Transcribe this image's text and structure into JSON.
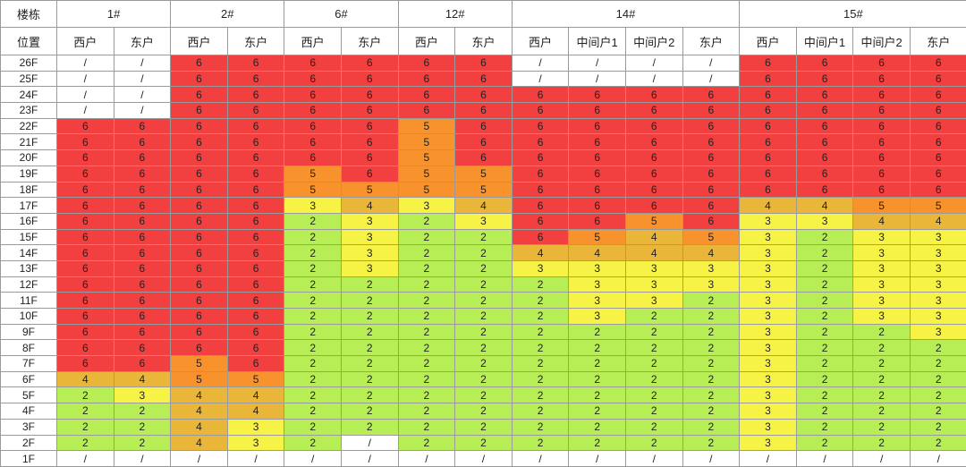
{
  "header": {
    "building_label": "楼栋",
    "position_label": "位置",
    "buildings": [
      {
        "name": "1#",
        "units": [
          "西户",
          "东户"
        ]
      },
      {
        "name": "2#",
        "units": [
          "西户",
          "东户"
        ]
      },
      {
        "name": "6#",
        "units": [
          "西户",
          "东户"
        ]
      },
      {
        "name": "12#",
        "units": [
          "西户",
          "东户"
        ]
      },
      {
        "name": "14#",
        "units": [
          "西户",
          "中间户1",
          "中间户2",
          "东户"
        ]
      },
      {
        "name": "15#",
        "units": [
          "西户",
          "中间户1",
          "中间户2",
          "东户"
        ]
      }
    ]
  },
  "colors": {
    "6": "#f23f3f",
    "5": "#f7922c",
    "4": "#e9b63a",
    "3": "#f7f346",
    "2": "#b8ee55",
    "/": "#ffffff"
  },
  "rows": [
    {
      "floor": "26F",
      "values": [
        "/",
        "/",
        "6",
        "6",
        "6",
        "6",
        "6",
        "6",
        "/",
        "/",
        "/",
        "/",
        "6",
        "6",
        "6",
        "6"
      ]
    },
    {
      "floor": "25F",
      "values": [
        "/",
        "/",
        "6",
        "6",
        "6",
        "6",
        "6",
        "6",
        "/",
        "/",
        "/",
        "/",
        "6",
        "6",
        "6",
        "6"
      ]
    },
    {
      "floor": "24F",
      "values": [
        "/",
        "/",
        "6",
        "6",
        "6",
        "6",
        "6",
        "6",
        "6",
        "6",
        "6",
        "6",
        "6",
        "6",
        "6",
        "6"
      ]
    },
    {
      "floor": "23F",
      "values": [
        "/",
        "/",
        "6",
        "6",
        "6",
        "6",
        "6",
        "6",
        "6",
        "6",
        "6",
        "6",
        "6",
        "6",
        "6",
        "6"
      ]
    },
    {
      "floor": "22F",
      "values": [
        "6",
        "6",
        "6",
        "6",
        "6",
        "6",
        "5",
        "6",
        "6",
        "6",
        "6",
        "6",
        "6",
        "6",
        "6",
        "6"
      ]
    },
    {
      "floor": "21F",
      "values": [
        "6",
        "6",
        "6",
        "6",
        "6",
        "6",
        "5",
        "6",
        "6",
        "6",
        "6",
        "6",
        "6",
        "6",
        "6",
        "6"
      ]
    },
    {
      "floor": "20F",
      "values": [
        "6",
        "6",
        "6",
        "6",
        "6",
        "6",
        "5",
        "6",
        "6",
        "6",
        "6",
        "6",
        "6",
        "6",
        "6",
        "6"
      ]
    },
    {
      "floor": "19F",
      "values": [
        "6",
        "6",
        "6",
        "6",
        "5",
        "6",
        "5",
        "5",
        "6",
        "6",
        "6",
        "6",
        "6",
        "6",
        "6",
        "6"
      ]
    },
    {
      "floor": "18F",
      "values": [
        "6",
        "6",
        "6",
        "6",
        "5",
        "5",
        "5",
        "5",
        "6",
        "6",
        "6",
        "6",
        "6",
        "6",
        "6",
        "6"
      ]
    },
    {
      "floor": "17F",
      "values": [
        "6",
        "6",
        "6",
        "6",
        "3",
        "4",
        "3",
        "4",
        "6",
        "6",
        "6",
        "6",
        "4",
        "4",
        "5",
        "5"
      ]
    },
    {
      "floor": "16F",
      "values": [
        "6",
        "6",
        "6",
        "6",
        "2",
        "3",
        "2",
        "3",
        "6",
        "6",
        "5",
        "6",
        "3",
        "3",
        "4",
        "4"
      ]
    },
    {
      "floor": "15F",
      "values": [
        "6",
        "6",
        "6",
        "6",
        "2",
        "3",
        "2",
        "2",
        "6",
        "5",
        "4",
        "5",
        "3",
        "2",
        "3",
        "3"
      ]
    },
    {
      "floor": "14F",
      "values": [
        "6",
        "6",
        "6",
        "6",
        "2",
        "3",
        "2",
        "2",
        "4",
        "4",
        "4",
        "4",
        "3",
        "2",
        "3",
        "3"
      ]
    },
    {
      "floor": "13F",
      "values": [
        "6",
        "6",
        "6",
        "6",
        "2",
        "3",
        "2",
        "2",
        "3",
        "3",
        "3",
        "3",
        "3",
        "2",
        "3",
        "3"
      ]
    },
    {
      "floor": "12F",
      "values": [
        "6",
        "6",
        "6",
        "6",
        "2",
        "2",
        "2",
        "2",
        "2",
        "3",
        "3",
        "3",
        "3",
        "2",
        "3",
        "3"
      ]
    },
    {
      "floor": "11F",
      "values": [
        "6",
        "6",
        "6",
        "6",
        "2",
        "2",
        "2",
        "2",
        "2",
        "3",
        "3",
        "2",
        "3",
        "2",
        "3",
        "3"
      ]
    },
    {
      "floor": "10F",
      "values": [
        "6",
        "6",
        "6",
        "6",
        "2",
        "2",
        "2",
        "2",
        "2",
        "3",
        "2",
        "2",
        "3",
        "2",
        "3",
        "3"
      ]
    },
    {
      "floor": "9F",
      "values": [
        "6",
        "6",
        "6",
        "6",
        "2",
        "2",
        "2",
        "2",
        "2",
        "2",
        "2",
        "2",
        "3",
        "2",
        "2",
        "3"
      ]
    },
    {
      "floor": "8F",
      "values": [
        "6",
        "6",
        "6",
        "6",
        "2",
        "2",
        "2",
        "2",
        "2",
        "2",
        "2",
        "2",
        "3",
        "2",
        "2",
        "2"
      ]
    },
    {
      "floor": "7F",
      "values": [
        "6",
        "6",
        "5",
        "6",
        "2",
        "2",
        "2",
        "2",
        "2",
        "2",
        "2",
        "2",
        "3",
        "2",
        "2",
        "2"
      ]
    },
    {
      "floor": "6F",
      "values": [
        "4",
        "4",
        "5",
        "5",
        "2",
        "2",
        "2",
        "2",
        "2",
        "2",
        "2",
        "2",
        "3",
        "2",
        "2",
        "2"
      ]
    },
    {
      "floor": "5F",
      "values": [
        "2",
        "3",
        "4",
        "4",
        "2",
        "2",
        "2",
        "2",
        "2",
        "2",
        "2",
        "2",
        "3",
        "2",
        "2",
        "2"
      ]
    },
    {
      "floor": "4F",
      "values": [
        "2",
        "2",
        "4",
        "4",
        "2",
        "2",
        "2",
        "2",
        "2",
        "2",
        "2",
        "2",
        "3",
        "2",
        "2",
        "2"
      ]
    },
    {
      "floor": "3F",
      "values": [
        "2",
        "2",
        "4",
        "3",
        "2",
        "2",
        "2",
        "2",
        "2",
        "2",
        "2",
        "2",
        "3",
        "2",
        "2",
        "2"
      ]
    },
    {
      "floor": "2F",
      "values": [
        "2",
        "2",
        "4",
        "3",
        "2",
        "/",
        "2",
        "2",
        "2",
        "2",
        "2",
        "2",
        "3",
        "2",
        "2",
        "2"
      ]
    },
    {
      "floor": "1F",
      "values": [
        "/",
        "/",
        "/",
        "/",
        "/",
        "/",
        "/",
        "/",
        "/",
        "/",
        "/",
        "/",
        "/",
        "/",
        "/",
        "/"
      ]
    }
  ]
}
